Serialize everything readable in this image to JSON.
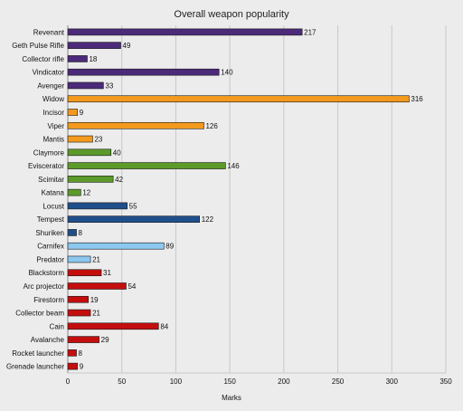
{
  "chart_data": {
    "type": "bar",
    "orientation": "horizontal",
    "title": "Overall weapon popularity",
    "xlabel": "Marks",
    "ylabel": "",
    "xlim": [
      0,
      350
    ],
    "x_ticks": [
      0,
      50,
      100,
      150,
      200,
      250,
      300,
      350
    ],
    "grid": true,
    "categories": [
      "Revenant",
      "Geth Pulse Rifle",
      "Collector rifle",
      "Vindicator",
      "Avenger",
      "Widow",
      "Incisor",
      "Viper",
      "Mantis",
      "Claymore",
      "Eviscerator",
      "Scimitar",
      "Katana",
      "Locust",
      "Tempest",
      "Shuriken",
      "Carnifex",
      "Predator",
      "Blackstorm",
      "Arc projector",
      "Firestorm",
      "Collector beam",
      "Cain",
      "Avalanche",
      "Rocket launcher",
      "Grenade launcher"
    ],
    "values": [
      217,
      49,
      18,
      140,
      33,
      316,
      9,
      126,
      23,
      40,
      146,
      42,
      12,
      55,
      122,
      8,
      89,
      21,
      31,
      54,
      19,
      21,
      84,
      29,
      8,
      9
    ],
    "colors": [
      "#4b2a7a",
      "#4b2a7a",
      "#4b2a7a",
      "#4b2a7a",
      "#4b2a7a",
      "#f39a1e",
      "#f39a1e",
      "#f39a1e",
      "#f39a1e",
      "#5c9a2a",
      "#5c9a2a",
      "#5c9a2a",
      "#5c9a2a",
      "#1f4f8a",
      "#1f4f8a",
      "#1f4f8a",
      "#8cc8f0",
      "#8cc8f0",
      "#c40e0e",
      "#c40e0e",
      "#c40e0e",
      "#c40e0e",
      "#c40e0e",
      "#c40e0e",
      "#c40e0e",
      "#c40e0e"
    ]
  }
}
